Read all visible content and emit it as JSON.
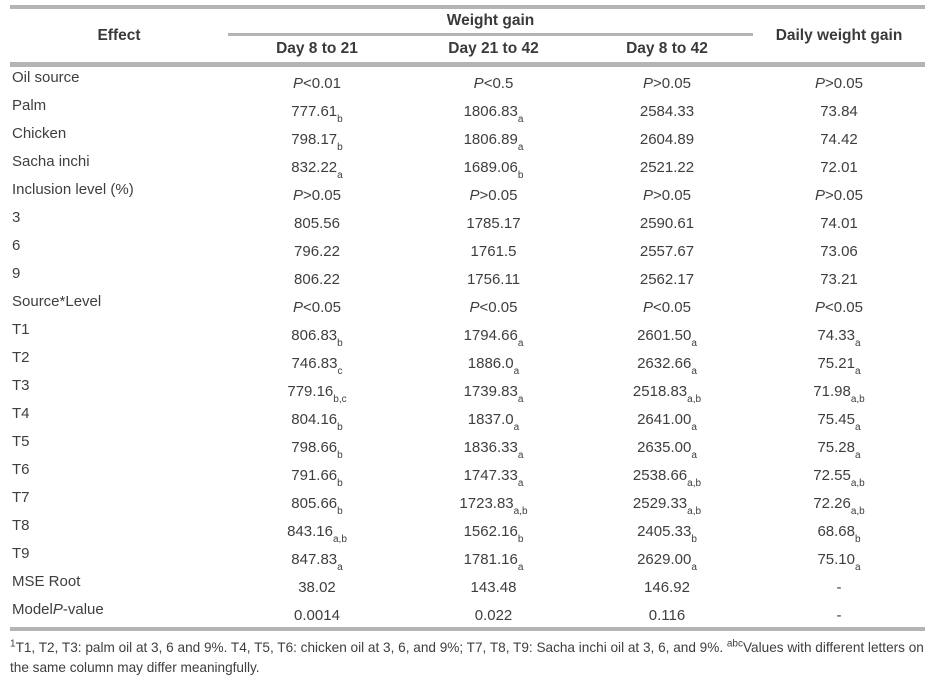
{
  "colors": {
    "rule_gray": "#b2b5b7",
    "text": "#3e3e3e"
  },
  "table": {
    "header": {
      "effect": "Effect",
      "group": "Weight gain",
      "sub_columns": [
        "Day 8 to 21",
        "Day 21 to 42",
        "Day 8 to 42"
      ],
      "last_column": "Daily weight gain"
    },
    "column_keys": [
      "day-8-to-21",
      "day-21-to-42",
      "day-8-to-42",
      "daily-weight-gain"
    ],
    "rows": [
      {
        "label": "Oil source",
        "values": [
          "*P*<0.01",
          "*P*<0.5",
          "*P*>0.05",
          "*P*>0.05"
        ]
      },
      {
        "label": "Palm",
        "values": [
          "777.61^{b}",
          "1806.83^{a}",
          "2584.33",
          "73.84"
        ]
      },
      {
        "label": "Chicken",
        "values": [
          "798.17^{b}",
          "1806.89^{a}",
          "2604.89",
          "74.42"
        ]
      },
      {
        "label": "Sacha inchi",
        "values": [
          "832.22^{a}",
          "1689.06^{b}",
          "2521.22",
          "72.01"
        ]
      },
      {
        "label": "Inclusion level (%)",
        "values": [
          "*P*>0.05",
          "*P*>0.05",
          "*P*>0.05",
          "*P*>0.05"
        ]
      },
      {
        "label": "3",
        "values": [
          "805.56",
          "1785.17",
          "2590.61",
          "74.01"
        ]
      },
      {
        "label": "6",
        "values": [
          "796.22",
          "1761.5",
          "2557.67",
          "73.06"
        ]
      },
      {
        "label": "9",
        "values": [
          "806.22",
          "1756.11",
          "2562.17",
          "73.21"
        ]
      },
      {
        "label": "Source*Level",
        "values": [
          "*P*<0.05",
          "*P*<0.05",
          "*P*<0.05",
          "*P*<0.05"
        ]
      },
      {
        "label": "T1",
        "values": [
          "806.83^{b}",
          "1794.66^{a}",
          "2601.50^{a}",
          "74.33^{a}"
        ]
      },
      {
        "label": "T2",
        "values": [
          "746.83^{c}",
          "1886.0^{a}",
          "2632.66^{a}",
          "75.21^{a}"
        ]
      },
      {
        "label": "T3",
        "values": [
          "779.16^{b,c}",
          "1739.83^{a}",
          "2518.83^{a,b}",
          "71.98^{a,b}"
        ]
      },
      {
        "label": "T4",
        "values": [
          "804.16^{b}",
          "1837.0^{a}",
          "2641.00^{a}",
          "75.45^{a}"
        ]
      },
      {
        "label": "T5",
        "values": [
          "798.66^{b}",
          "1836.33^{a}",
          "2635.00^{a}",
          "75.28^{a}"
        ]
      },
      {
        "label": "T6",
        "values": [
          "791.66^{b}",
          "1747.33^{a}",
          "2538.66^{a,b}",
          "72.55^{a,b}"
        ]
      },
      {
        "label": "T7",
        "values": [
          "805.66^{b}",
          "1723.83^{a,b}",
          "2529.33^{a,b}",
          "72.26^{a,b}"
        ]
      },
      {
        "label": "T8",
        "values": [
          "843.16^{a,b}",
          "1562.16^{b}",
          "2405.33^{b}",
          "68.68^{b}"
        ]
      },
      {
        "label": "T9",
        "values": [
          "847.83^{a}",
          "1781.16^{a}",
          "2629.00^{a}",
          "75.10^{a}"
        ]
      },
      {
        "label": "MSE Root",
        "values": [
          "38.02",
          "143.48",
          "146.92",
          "-"
        ]
      },
      {
        "label": "Model *P*-value",
        "values": [
          "0.0014",
          "0.022",
          "0.116",
          "-"
        ]
      }
    ],
    "footnote": "^{1}T1, T2, T3: palm oil at 3, 6 and 9%. T4, T5, T6: chicken oil at 3, 6, and 9%; T7, T8, T9: Sacha inchi oil at 3, 6, and 9%. ^{abc}Values with different letters on the same column may differ meaningfully."
  }
}
